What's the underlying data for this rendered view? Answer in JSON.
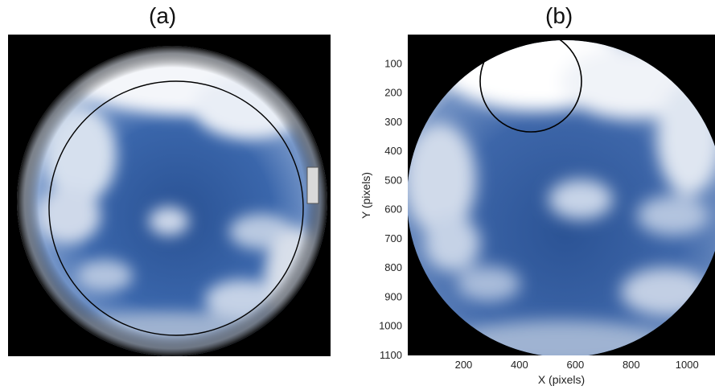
{
  "panels": {
    "a": {
      "label": "(a)"
    },
    "b": {
      "label": "(b)",
      "xlabel": "X (pixels)",
      "ylabel": "Y (pixels)",
      "xticks": [
        200,
        400,
        600,
        800,
        1000
      ],
      "yticks": [
        100,
        200,
        300,
        400,
        500,
        600,
        700,
        800,
        900,
        1000,
        1100
      ]
    }
  },
  "colors": {
    "background": "#000000",
    "sky_edge": "#3d63a6",
    "sky_center": "#2a4f92",
    "cloud": "#f4f6fa",
    "circle_stroke": "#000000"
  }
}
